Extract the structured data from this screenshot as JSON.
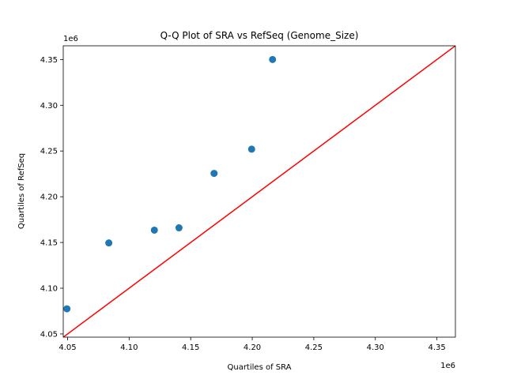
{
  "chart_data": {
    "type": "scatter",
    "title": "Q-Q Plot of SRA vs RefSeq (Genome_Size)",
    "xlabel": "Quartiles of SRA",
    "ylabel": "Quartiles of RefSeq",
    "x_offset_label": "1e6",
    "y_offset_label": "1e6",
    "xlim": [
      4.0465,
      4.365
    ],
    "ylim": [
      4.0465,
      4.365
    ],
    "xticks": [
      4.05,
      4.1,
      4.15,
      4.2,
      4.25,
      4.3,
      4.35
    ],
    "xtick_labels": [
      "4.05",
      "4.10",
      "4.15",
      "4.20",
      "4.25",
      "4.30",
      "4.35"
    ],
    "yticks": [
      4.05,
      4.1,
      4.15,
      4.2,
      4.25,
      4.3,
      4.35
    ],
    "ytick_labels": [
      "4.05",
      "4.10",
      "4.15",
      "4.20",
      "4.25",
      "4.30",
      "4.35"
    ],
    "grid": false,
    "points": [
      {
        "x": 4.0495,
        "y": 4.0775
      },
      {
        "x": 4.0835,
        "y": 4.1495
      },
      {
        "x": 4.1205,
        "y": 4.1635
      },
      {
        "x": 4.1405,
        "y": 4.166
      },
      {
        "x": 4.169,
        "y": 4.2255
      },
      {
        "x": 4.1995,
        "y": 4.252
      },
      {
        "x": 4.2165,
        "y": 4.35
      }
    ],
    "reference_line": {
      "from": [
        4.0465,
        4.0465
      ],
      "to": [
        4.365,
        4.365
      ]
    },
    "colors": {
      "points": "#1f77b4",
      "reference_line": "#ff0000"
    }
  }
}
